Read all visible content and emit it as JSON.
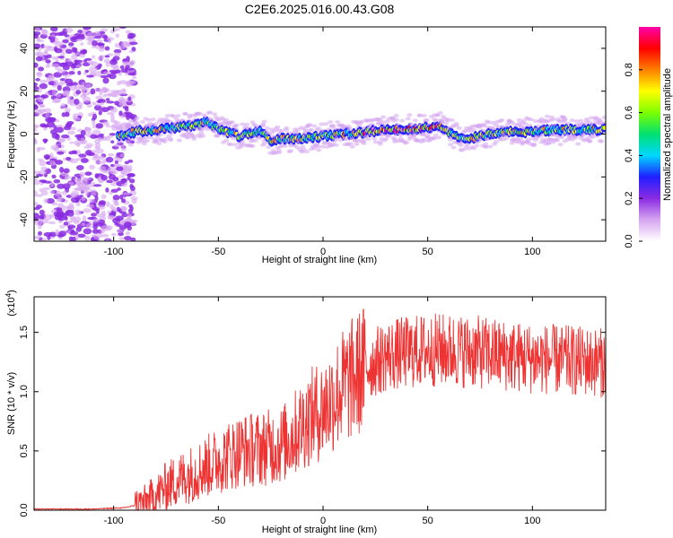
{
  "title": "C2E6.2025.016.00.43.G08",
  "chart_data": [
    {
      "type": "heatmap",
      "xlabel": "Height of straight line (km)",
      "ylabel": "Frequency (Hz)",
      "xlim": [
        -138,
        135
      ],
      "ylim": [
        -50,
        50
      ],
      "xticks": [
        -100,
        -50,
        0,
        50,
        100
      ],
      "yticks": [
        -40,
        -20,
        0,
        20,
        40
      ],
      "grid": false,
      "colorbar": {
        "label": "Normalized spectral amplitude",
        "range": [
          0,
          1
        ],
        "ticks": [
          "0.0",
          "0.2",
          "0.4",
          "0.6",
          "0.8"
        ],
        "colors": [
          "#ffffff",
          "#d6a5f0",
          "#8a2be2",
          "#1f1fff",
          "#00d8ff",
          "#00e070",
          "#7cff00",
          "#ffff00",
          "#ff8000",
          "#ff0000",
          "#ff00aa"
        ]
      },
      "ridge": {
        "x": [
          -97,
          -90,
          -80,
          -70,
          -60,
          -55,
          -50,
          -40,
          -30,
          -25,
          -20,
          -10,
          0,
          10,
          20,
          30,
          40,
          50,
          55,
          60,
          65,
          70,
          80,
          90,
          100,
          110,
          120,
          135
        ],
        "y": [
          -1,
          1,
          2,
          3,
          4,
          6,
          2,
          -1,
          1,
          -3,
          -2,
          -2,
          -1,
          0,
          1,
          2,
          2,
          3,
          4,
          1,
          -1,
          -2,
          0,
          1,
          1,
          2,
          2,
          2
        ],
        "peak_range": [
          15,
          60
        ]
      }
    },
    {
      "type": "line",
      "xlabel": "Height of straight line (km)",
      "ylabel": "SNR (10 * v/v)",
      "y_multiplier": "(x10^4)",
      "xlim": [
        -138,
        135
      ],
      "ylim": [
        0,
        1.8
      ],
      "xticks": [
        -100,
        -50,
        0,
        50,
        100
      ],
      "yticks": [
        "0.0",
        "0.5",
        "1.0",
        "1.5"
      ],
      "grid": false,
      "color": "#ee3333",
      "series": [
        {
          "x": [
            -138,
            -110,
            -95,
            -85,
            -80,
            -75,
            -70,
            -60,
            -50,
            -40,
            -30,
            -20,
            -15,
            -10,
            -5,
            0,
            5,
            10,
            15,
            20,
            25,
            30,
            40,
            50,
            60,
            70,
            80,
            90,
            100,
            110,
            120,
            130,
            135
          ],
          "y": [
            0.01,
            0.01,
            0.02,
            0.06,
            0.12,
            0.2,
            0.25,
            0.33,
            0.42,
            0.5,
            0.52,
            0.55,
            0.62,
            0.72,
            0.8,
            0.85,
            0.95,
            1.05,
            1.12,
            1.2,
            1.25,
            1.3,
            1.33,
            1.35,
            1.35,
            1.34,
            1.32,
            1.3,
            1.28,
            1.27,
            1.26,
            1.25,
            1.24
          ]
        }
      ]
    }
  ]
}
